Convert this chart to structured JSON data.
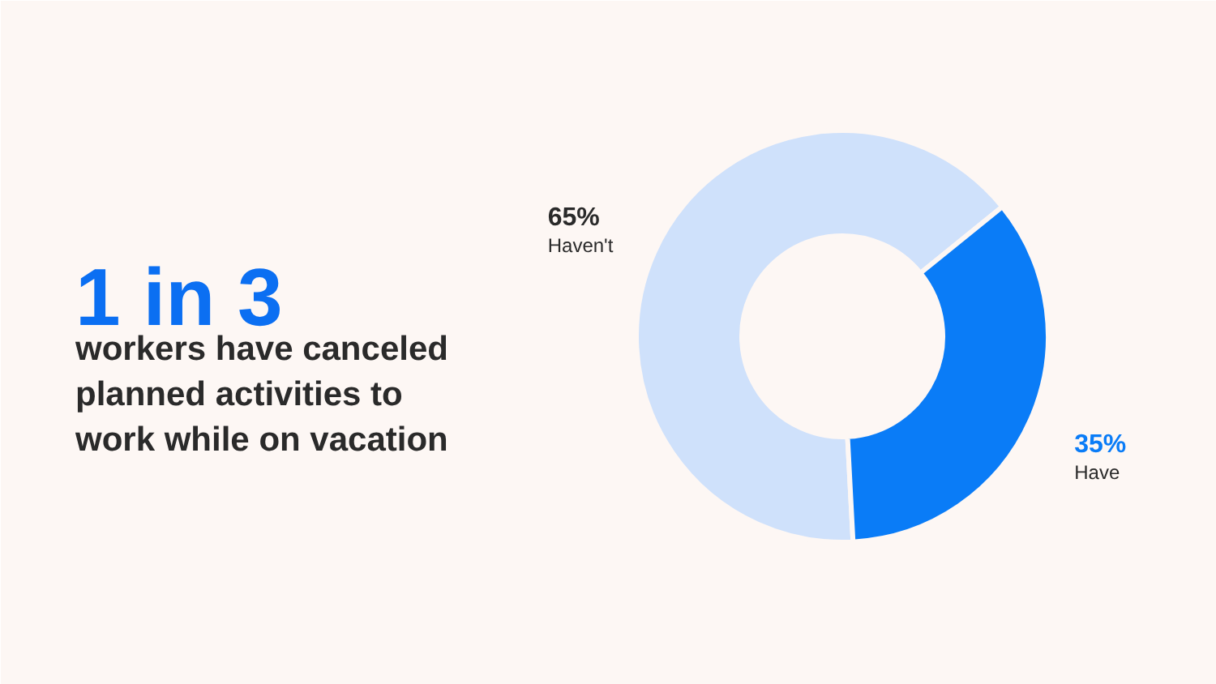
{
  "chart_data": {
    "type": "donut",
    "title": "1 in 3",
    "subtitle": "workers have canceled planned activities to work while on vacation",
    "categories": [
      "Haven't",
      "Have"
    ],
    "values": [
      65,
      35
    ],
    "colors": [
      "#cfe1fb",
      "#0a7cf7"
    ],
    "value_labels": [
      "65%",
      "35%"
    ]
  }
}
